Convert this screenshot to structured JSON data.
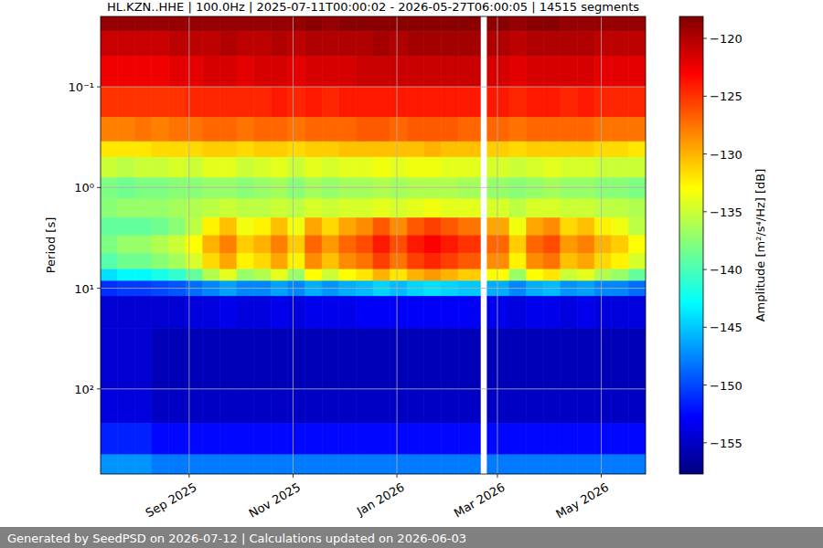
{
  "chart_data": {
    "type": "heatmap",
    "title": "HL.KZN..HHE | 100.0Hz | 2025-07-11T00:00:02 - 2026-05-27T06:00:05 | 14515 segments",
    "y_label": "Period [s]",
    "footer": "Generated by SeedPSD on 2026-07-12 | Calculations updated on 2026-06-03",
    "log": "y",
    "grid": true,
    "xlim": [
      "2025-07-11",
      "2026-05-27"
    ],
    "ylim": [
      700,
      0.02
    ],
    "xticks": [
      {
        "value": "2025-09-01",
        "label": "Sep 2025"
      },
      {
        "value": "2025-11-01",
        "label": "Nov 2025"
      },
      {
        "value": "2026-01-01",
        "label": "Jan 2026"
      },
      {
        "value": "2026-03-01",
        "label": "Mar 2026"
      },
      {
        "value": "2026-05-01",
        "label": "May 2026"
      }
    ],
    "yticks": [
      {
        "value": 0.1,
        "label": "10⁻¹"
      },
      {
        "value": 1,
        "label": "10⁰"
      },
      {
        "value": 10,
        "label": "10¹"
      },
      {
        "value": 100,
        "label": "10²"
      }
    ],
    "x_bins": [
      "2025-07-11",
      "2025-07-21",
      "2025-07-31",
      "2025-08-10",
      "2025-08-20",
      "2025-08-30",
      "2025-09-09",
      "2025-09-19",
      "2025-09-29",
      "2025-10-09",
      "2025-10-19",
      "2025-10-29",
      "2025-11-08",
      "2025-11-18",
      "2025-11-28",
      "2025-12-08",
      "2025-12-18",
      "2025-12-28",
      "2026-01-07",
      "2026-01-17",
      "2026-01-27",
      "2026-02-06",
      "2026-02-19",
      "2026-02-23",
      "2026-03-08",
      "2026-03-18",
      "2026-03-28",
      "2026-04-07",
      "2026-04-17",
      "2026-04-27",
      "2026-05-07",
      "2026-05-17",
      "2026-05-27"
    ],
    "y_bins": [
      0.02,
      0.028,
      0.05,
      0.1,
      0.2,
      0.35,
      0.5,
      0.8,
      1.3,
      2,
      3,
      4.5,
      6.5,
      8.5,
      12,
      25,
      100,
      220,
      450,
      700
    ],
    "z": [
      [
        -119,
        -119,
        -119,
        -119,
        -119,
        -119,
        -119,
        -119,
        -119,
        -119,
        -119,
        -119,
        -118.5,
        -119,
        -118.5,
        -118.5,
        -118.5,
        -118.5,
        -118.5,
        -118.5,
        -118.5,
        -118.5,
        null,
        -118.5,
        -119,
        -118.5,
        -118.5,
        -119,
        -119,
        -119,
        -119,
        -119
      ],
      [
        -121,
        -121,
        -121,
        -121,
        -120.5,
        -120.5,
        -120.5,
        -120,
        -120.5,
        -120.5,
        -120,
        -120.5,
        -120,
        -120,
        -120,
        -120,
        -119.5,
        -120,
        -119.5,
        -119.5,
        -119.5,
        -119.5,
        null,
        -120,
        -120.5,
        -120,
        -120,
        -120,
        -120,
        -120.5,
        -120.5,
        -120.5
      ],
      [
        -122.5,
        -122.5,
        -122.5,
        -122.5,
        -122,
        -122,
        -121.5,
        -121.5,
        -122,
        -121.5,
        -121.5,
        -122,
        -121.5,
        -121.5,
        -121.5,
        -121,
        -121,
        -121,
        -121,
        -121,
        -121,
        -121,
        null,
        -121.5,
        -122,
        -121.5,
        -121.5,
        -121.5,
        -121.5,
        -122,
        -122,
        -122
      ],
      [
        -125,
        -125,
        -125,
        -125,
        -125,
        -124.5,
        -124.5,
        -124.5,
        -124.5,
        -124.5,
        -124,
        -124.5,
        -124,
        -124.5,
        -124,
        -124,
        -124,
        -124,
        -124,
        -124,
        -124,
        -124,
        null,
        -124,
        -124.5,
        -124,
        -124,
        -124.5,
        -124,
        -124.5,
        -124.5,
        -124.5
      ],
      [
        -128,
        -128,
        -127.5,
        -128,
        -127.5,
        -127.5,
        -127,
        -127,
        -127.5,
        -127,
        -127,
        -127.5,
        -127,
        -127,
        -127,
        -126.5,
        -126.5,
        -127,
        -126.5,
        -126.5,
        -126.5,
        -127,
        null,
        -127,
        -127.5,
        -127,
        -127,
        -127,
        -127,
        -127.5,
        -127.5,
        -127.5
      ],
      [
        -132,
        -132,
        -132,
        -131.5,
        -131.5,
        -131.5,
        -131,
        -131,
        -131.5,
        -131,
        -131,
        -131.5,
        -131,
        -131,
        -130.5,
        -130.5,
        -130.5,
        -130.5,
        -130.5,
        -130,
        -130.5,
        -130.5,
        null,
        -131,
        -131.5,
        -131,
        -131,
        -131,
        -131,
        -131.5,
        -131.5,
        -132
      ],
      [
        -135,
        -135.5,
        -135,
        -135,
        -134.5,
        -135,
        -134,
        -134,
        -135,
        -134.5,
        -134,
        -135,
        -134,
        -134.5,
        -134,
        -134,
        -133.5,
        -134,
        -133.5,
        -133.5,
        -134,
        -134,
        null,
        -134.5,
        -135,
        -134.5,
        -134,
        -134.5,
        -134.5,
        -135,
        -135,
        -135
      ],
      [
        -138,
        -138.5,
        -138,
        -138,
        -137.5,
        -137.5,
        -137,
        -137,
        -137.5,
        -137,
        -136.5,
        -137.5,
        -136.5,
        -137,
        -136.5,
        -136.5,
        -136,
        -136.5,
        -136,
        -136,
        -136,
        -136.5,
        null,
        -137,
        -137.5,
        -137,
        -136.5,
        -137,
        -137,
        -137.5,
        -137.5,
        -138
      ],
      [
        -137.5,
        -137,
        -137,
        -137,
        -136.5,
        -136,
        -135.5,
        -135,
        -135.5,
        -135.5,
        -135,
        -135.5,
        -134.5,
        -135,
        -134.5,
        -134.5,
        -134,
        -134.5,
        -134,
        -133.5,
        -134,
        -134,
        null,
        -134.5,
        -135.5,
        -134.5,
        -134.5,
        -135,
        -135,
        -135.5,
        -135.5,
        -136
      ],
      [
        -139,
        -139,
        -139,
        -138.5,
        -137.5,
        -135.5,
        -132.5,
        -130.5,
        -133.5,
        -132.5,
        -130.5,
        -133.5,
        -129.5,
        -131.5,
        -129.5,
        -128.5,
        -126.5,
        -128.5,
        -126.5,
        -125.5,
        -126.5,
        -127.5,
        null,
        -129.5,
        -133.5,
        -129.5,
        -128.5,
        -131.5,
        -130.5,
        -132.5,
        -133.5,
        -135.5
      ],
      [
        -138,
        -137,
        -137,
        -136,
        -135,
        -133,
        -130,
        -128,
        -131,
        -130,
        -128,
        -131,
        -127,
        -129,
        -127,
        -126,
        -124,
        -126,
        -124,
        -123,
        -124,
        -125,
        null,
        -127,
        -131,
        -127,
        -126,
        -129,
        -128,
        -130,
        -131,
        -133
      ],
      [
        -139.5,
        -138.5,
        -138.5,
        -137.5,
        -136.5,
        -134.5,
        -131.5,
        -129.5,
        -132.5,
        -131.5,
        -129.5,
        -132.5,
        -128.5,
        -130.5,
        -128.5,
        -127.5,
        -125.5,
        -127.5,
        -125.5,
        -124.5,
        -125.5,
        -126.5,
        null,
        -128.5,
        -132.5,
        -128.5,
        -127.5,
        -130.5,
        -129.5,
        -131.5,
        -132.5,
        -134.5
      ],
      [
        -144,
        -143,
        -143,
        -142,
        -141,
        -139,
        -136,
        -134,
        -137,
        -136,
        -134,
        -137,
        -133,
        -135,
        -133,
        -132,
        -130,
        -132,
        -130,
        -129,
        -130,
        -131,
        null,
        -133,
        -137,
        -133,
        -132,
        -135,
        -134,
        -136,
        -137,
        -139
      ],
      [
        -151,
        -150.5,
        -150.5,
        -150,
        -149.5,
        -148.5,
        -147.5,
        -146.5,
        -147.5,
        -147.5,
        -146.5,
        -147.5,
        -146,
        -147,
        -146,
        -145.5,
        -144.5,
        -145.5,
        -144.5,
        -144,
        -144.5,
        -145,
        null,
        -146,
        -147.5,
        -146,
        -145.5,
        -147,
        -146.5,
        -147.5,
        -147.5,
        -148.5
      ],
      [
        -154.5,
        -154.5,
        -154.5,
        -154.5,
        -154.5,
        -154,
        -154,
        -153.5,
        -154,
        -154,
        -153.5,
        -154,
        -153.5,
        -153.5,
        -153.5,
        -153,
        -153,
        -153,
        -153,
        -153,
        -153,
        -153,
        null,
        -153.5,
        -154,
        -153.5,
        -153.5,
        -154,
        -153.5,
        -154,
        -154,
        -154
      ],
      [
        -154.5,
        -154.5,
        -154.5,
        -155.5,
        -155.5,
        -155.5,
        -155.5,
        -155.5,
        -155.5,
        -155.5,
        -155.5,
        -155.5,
        -155.5,
        -155.5,
        -155.5,
        -155.5,
        -155.5,
        -155.5,
        -155.5,
        -155.5,
        -155.5,
        -155.5,
        null,
        -155.5,
        -155.5,
        -155.5,
        -155.5,
        -155.5,
        -155.5,
        -155.5,
        -155.5,
        -155.5
      ],
      [
        -154,
        -154,
        -154,
        -155,
        -155,
        -155,
        -155,
        -155,
        -155,
        -155,
        -155,
        -155,
        -155,
        -155,
        -155,
        -155,
        -155,
        -155,
        -155,
        -155,
        -155,
        -155,
        null,
        -155,
        -155,
        -155,
        -155,
        -155,
        -155,
        -155,
        -155,
        -155
      ],
      [
        -151.5,
        -151.5,
        -151.5,
        -152.5,
        -152.5,
        -152.5,
        -152.5,
        -152.5,
        -152.5,
        -152.5,
        -152.5,
        -152.5,
        -152.5,
        -152.5,
        -152.5,
        -152.5,
        -152.5,
        -152.5,
        -152.5,
        -152.5,
        -152.5,
        -152.5,
        null,
        -152.5,
        -152.5,
        -152.5,
        -152.5,
        -152.5,
        -152.5,
        -152.5,
        -152.5,
        -152.5
      ],
      [
        -147,
        -147,
        -147,
        -148,
        -148,
        -148,
        -148,
        -148,
        -148,
        -148,
        -148,
        -148,
        -148,
        -148,
        -148,
        -148,
        -148,
        -148,
        -148,
        -148,
        -148,
        -148,
        null,
        -148,
        -148,
        -148,
        -148,
        -148,
        -148,
        -148,
        -148,
        -148
      ]
    ],
    "colorbar": {
      "label": "Amplitude [m²/s⁴/Hz] [dB]",
      "range": [
        -157.7,
        -118.1
      ],
      "ticks": [
        {
          "value": -155,
          "label": "−155"
        },
        {
          "value": -150,
          "label": "−150"
        },
        {
          "value": -145,
          "label": "−145"
        },
        {
          "value": -140,
          "label": "−140"
        },
        {
          "value": -135,
          "label": "−135"
        },
        {
          "value": -130,
          "label": "−130"
        },
        {
          "value": -125,
          "label": "−125"
        },
        {
          "value": -120,
          "label": "−120"
        }
      ]
    }
  }
}
